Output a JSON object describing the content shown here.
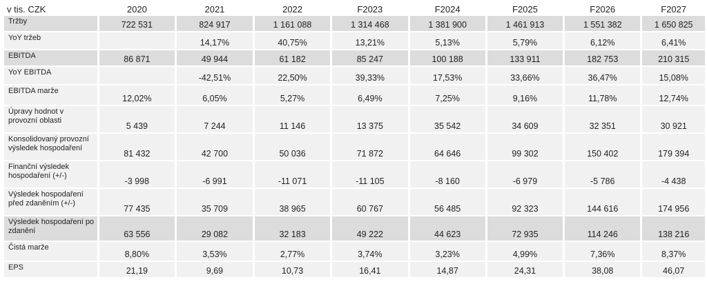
{
  "table": {
    "unit_label": "v tis. CZK",
    "columns": [
      "2020",
      "2021",
      "2022",
      "F2023",
      "F2024",
      "F2025",
      "F2026",
      "F2027"
    ],
    "rows": [
      {
        "label": "Tržby",
        "shaded": true,
        "values": [
          "722 531",
          "824 917",
          "1 161 088",
          "1 314 468",
          "1 381 900",
          "1 461 913",
          "1 551 382",
          "1 650 825"
        ]
      },
      {
        "label": "YoY tržeb",
        "shaded": false,
        "values": [
          "",
          "14,17%",
          "40,75%",
          "13,21%",
          "5,13%",
          "5,79%",
          "6,12%",
          "6,41%"
        ]
      },
      {
        "label": "EBITDA",
        "shaded": true,
        "values": [
          "86 871",
          "49 944",
          "61 182",
          "85 247",
          "100 188",
          "133 911",
          "182 753",
          "210 315"
        ]
      },
      {
        "label": "YoY EBITDA",
        "shaded": false,
        "values": [
          "",
          "-42,51%",
          "22,50%",
          "39,33%",
          "17,53%",
          "33,66%",
          "36,47%",
          "15,08%"
        ]
      },
      {
        "label": "EBITDA marže",
        "shaded": false,
        "values": [
          "12,02%",
          "6,05%",
          "5,27%",
          "6,49%",
          "7,25%",
          "9,16%",
          "11,78%",
          "12,74%"
        ]
      },
      {
        "label": "Úpravy hodnot v provozní oblasti",
        "shaded": false,
        "values": [
          "5 439",
          "7 244",
          "11 146",
          "13 375",
          "35 542",
          "34 609",
          "32 351",
          "30 921"
        ]
      },
      {
        "label": "Konsolidovaný provozní výsledek hospodaření",
        "shaded": false,
        "values": [
          "81 432",
          "42 700",
          "50 036",
          "71 872",
          "64 646",
          "99 302",
          "150 402",
          "179 394"
        ]
      },
      {
        "label": "Finanční výsledek hospodaření (+/-)",
        "shaded": false,
        "values": [
          "-3 998",
          "-6 991",
          "-11 071",
          "-11 105",
          "-8 160",
          "-6 979",
          "-5 786",
          "-4 438"
        ]
      },
      {
        "label": "Výsledek hospodaření před zdaněním (+/-)",
        "shaded": false,
        "values": [
          "77 435",
          "35 709",
          "38 965",
          "60 767",
          "56 485",
          "92 323",
          "144 616",
          "174 956"
        ]
      },
      {
        "label": "Výsledek hospodaření po zdanění",
        "shaded": true,
        "values": [
          "63 556",
          "29 082",
          "32 183",
          "49 222",
          "44 623",
          "72 935",
          "114 246",
          "138 216"
        ]
      },
      {
        "label": "Čistá marže",
        "shaded": false,
        "values": [
          "8,80%",
          "3,53%",
          "2,77%",
          "3,74%",
          "3,23%",
          "4,99%",
          "7,36%",
          "8,37%"
        ]
      },
      {
        "label": "EPS",
        "shaded": false,
        "values": [
          "21,19",
          "9,69",
          "10,73",
          "16,41",
          "14,87",
          "24,31",
          "38,08",
          "46,07"
        ]
      }
    ]
  }
}
